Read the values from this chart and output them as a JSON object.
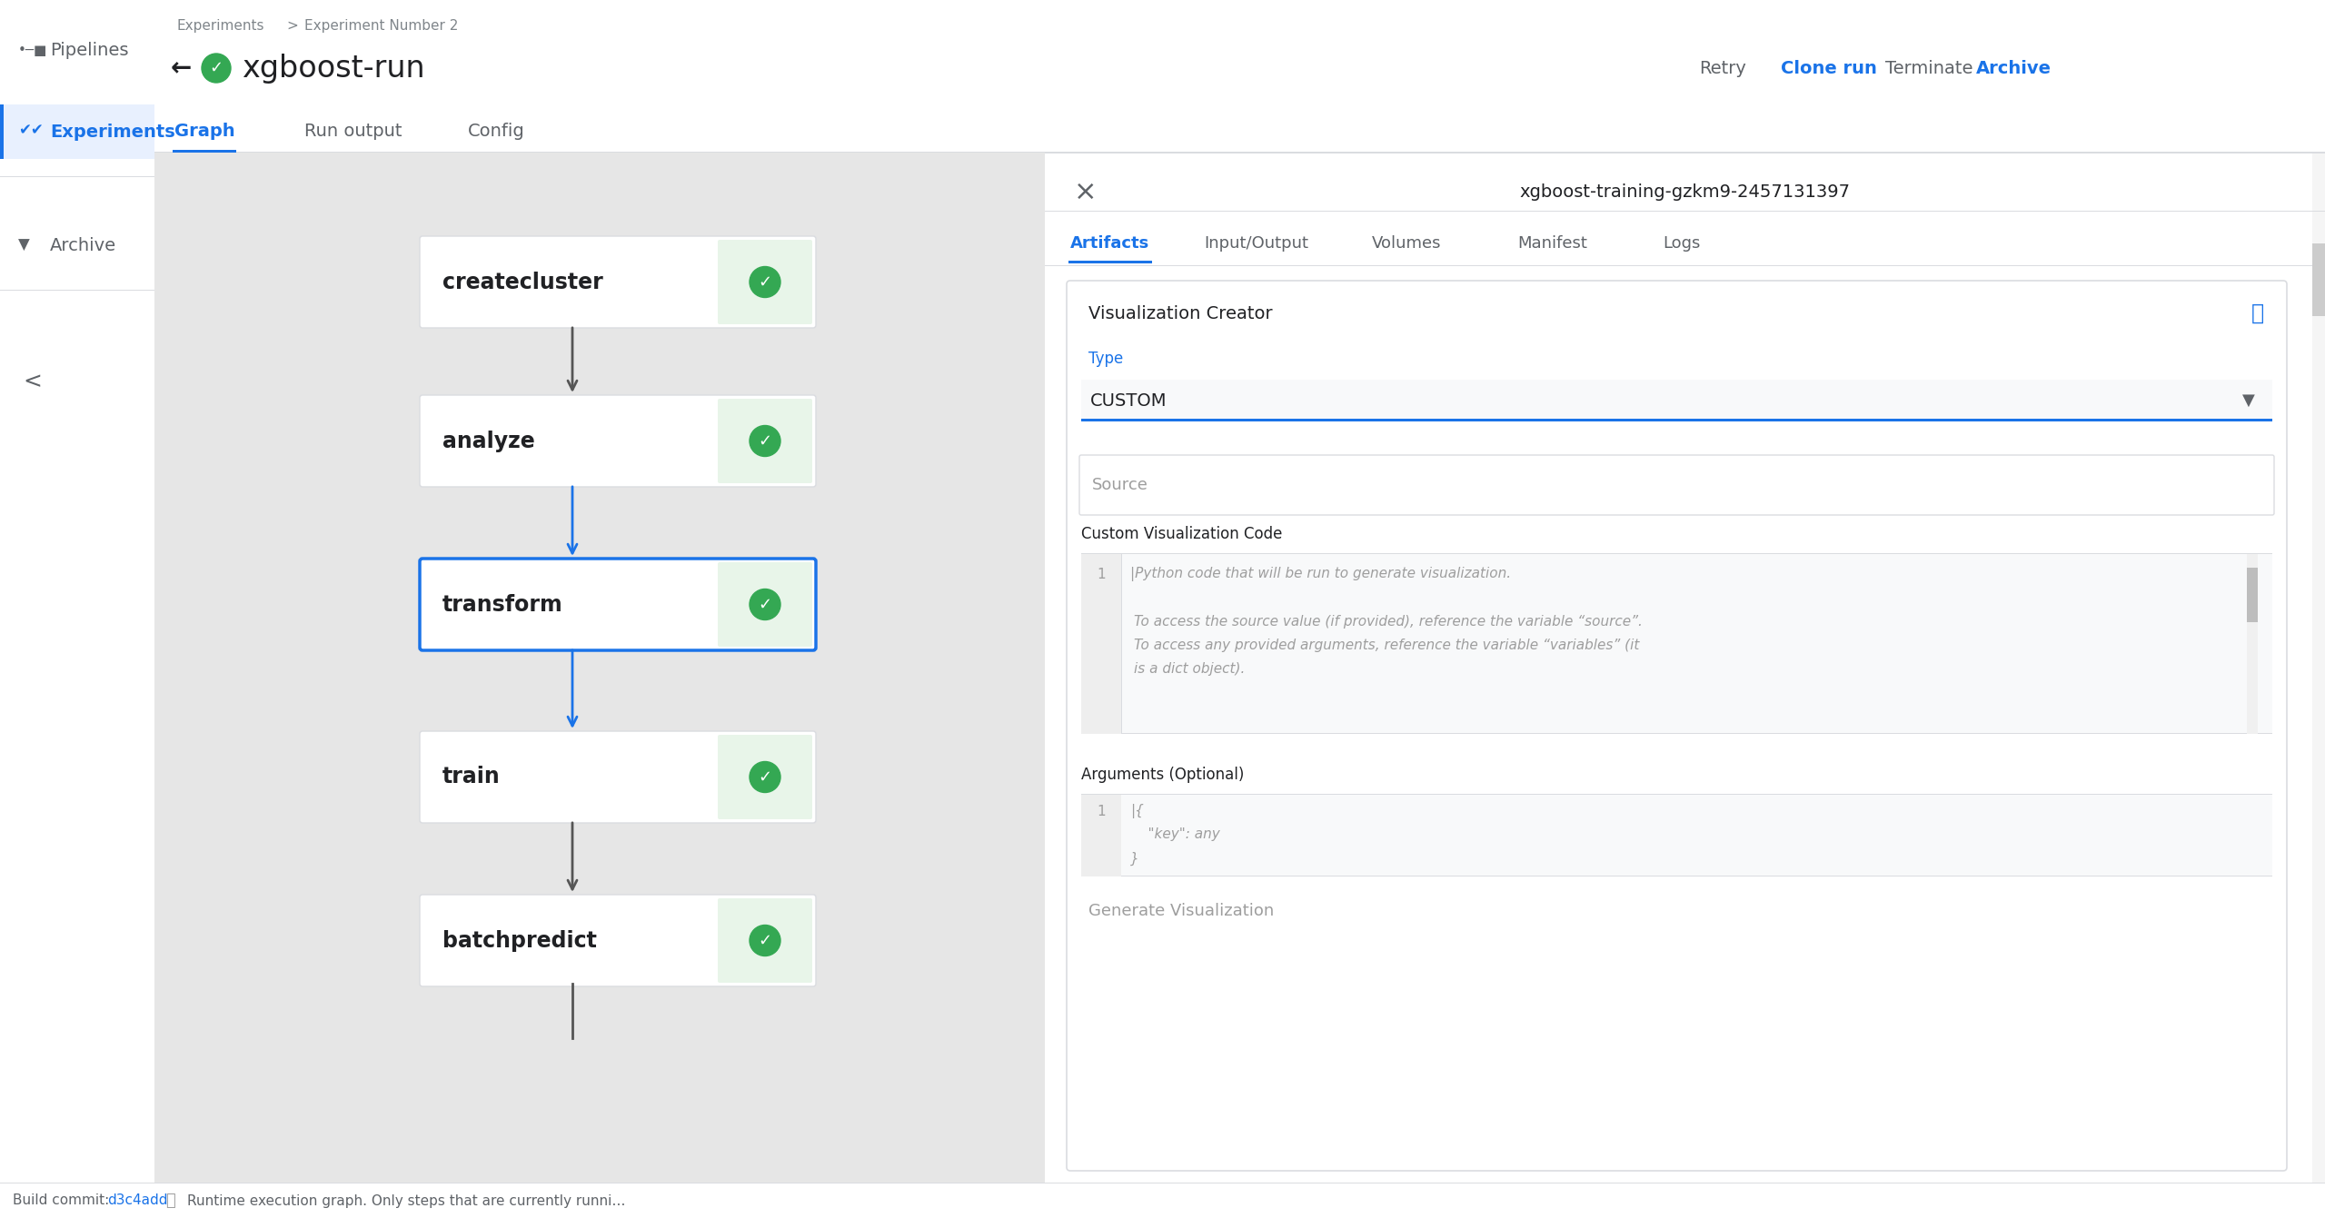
{
  "bg_color": "#f0f0f0",
  "white": "#ffffff",
  "blue": "#1a73e8",
  "green": "#34a853",
  "gray": "#5f6368",
  "light_gray": "#e8eaed",
  "border_gray": "#dadce0",
  "text_dark": "#202124",
  "text_mid": "#3c4043",
  "sidebar_bg": "#ffffff",
  "graph_bg": "#e8e8e8",
  "title": "xgboost-run",
  "breadcrumb1": "Experiments",
  "breadcrumb2": "Experiment Number 2",
  "top_actions": [
    "Retry",
    "Clone run",
    "Terminate",
    "Archive"
  ],
  "top_action_colors": [
    "#5f6368",
    "#1a73e8",
    "#5f6368",
    "#1a73e8"
  ],
  "top_action_bold": [
    false,
    true,
    false,
    true
  ],
  "graph_tabs": [
    "Graph",
    "Run output",
    "Config"
  ],
  "pipeline_nodes": [
    "createcluster",
    "analyze",
    "transform",
    "train",
    "batchpredict"
  ],
  "panel_title": "xgboost-training-gzkm9-2457131397",
  "artifact_tabs": [
    "Artifacts",
    "Input/Output",
    "Volumes",
    "Manifest",
    "Logs"
  ],
  "viz_title": "Visualization Creator",
  "type_label": "Type",
  "custom_label": "CUSTOM",
  "source_placeholder": "Source",
  "code_label": "Custom Visualization Code",
  "code_line1": "Python code that will be run to generate visualization.",
  "code_comment1": "To access the source value (if provided), reference the variable “source”.",
  "code_comment2": "To access any provided arguments, reference the variable “variables” (it",
  "code_comment3": "is a dict object).",
  "args_label": "Arguments (Optional)",
  "args_line1": "{",
  "args_line2": "    \"key\": any",
  "args_line3": "}",
  "gen_button": "Generate Visualization",
  "footer_commit_label": "Build commit:",
  "footer_commit_link": "d3c4add",
  "footer_info": "Runtime execution graph. Only steps that are currently runni…"
}
